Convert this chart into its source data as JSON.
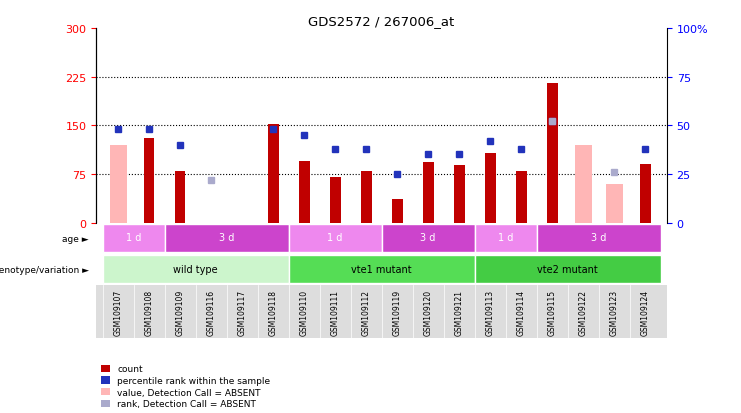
{
  "title": "GDS2572 / 267006_at",
  "samples": [
    "GSM109107",
    "GSM109108",
    "GSM109109",
    "GSM109116",
    "GSM109117",
    "GSM109118",
    "GSM109110",
    "GSM109111",
    "GSM109112",
    "GSM109119",
    "GSM109120",
    "GSM109121",
    "GSM109113",
    "GSM109114",
    "GSM109115",
    "GSM109122",
    "GSM109123",
    "GSM109124"
  ],
  "count_values": [
    null,
    130,
    80,
    null,
    null,
    152,
    95,
    70,
    80,
    37,
    93,
    88,
    108,
    80,
    215,
    null,
    null,
    90
  ],
  "count_absent": [
    120,
    null,
    null,
    null,
    null,
    null,
    null,
    null,
    null,
    null,
    null,
    null,
    null,
    null,
    null,
    120,
    60,
    null
  ],
  "rank_values": [
    48,
    48,
    40,
    null,
    null,
    48,
    45,
    38,
    38,
    25,
    35,
    35,
    42,
    38,
    52,
    null,
    null,
    38
  ],
  "rank_absent": [
    null,
    null,
    null,
    22,
    null,
    null,
    null,
    null,
    null,
    null,
    null,
    null,
    null,
    null,
    52,
    null,
    26,
    null
  ],
  "ylim_left": [
    0,
    300
  ],
  "ylim_right": [
    0,
    100
  ],
  "yticks_left": [
    0,
    75,
    150,
    225,
    300
  ],
  "yticks_right": [
    0,
    25,
    50,
    75,
    100
  ],
  "grid_lines": [
    75,
    150,
    225
  ],
  "bar_color_count": "#c00000",
  "bar_color_absent": "#ffb6b6",
  "dot_color_rank": "#2233bb",
  "dot_color_rank_absent": "#aaaacc",
  "genotype_groups": [
    {
      "label": "wild type",
      "start": 0,
      "end": 5,
      "color": "#ccf5cc"
    },
    {
      "label": "vte1 mutant",
      "start": 6,
      "end": 11,
      "color": "#55dd55"
    },
    {
      "label": "vte2 mutant",
      "start": 12,
      "end": 17,
      "color": "#44cc44"
    }
  ],
  "age_groups": [
    {
      "label": "1 d",
      "start": 0,
      "end": 1,
      "color": "#ee88ee"
    },
    {
      "label": "3 d",
      "start": 2,
      "end": 5,
      "color": "#cc44cc"
    },
    {
      "label": "1 d",
      "start": 6,
      "end": 8,
      "color": "#ee88ee"
    },
    {
      "label": "3 d",
      "start": 9,
      "end": 11,
      "color": "#cc44cc"
    },
    {
      "label": "1 d",
      "start": 12,
      "end": 13,
      "color": "#ee88ee"
    },
    {
      "label": "3 d",
      "start": 14,
      "end": 17,
      "color": "#cc44cc"
    }
  ],
  "legend_items": [
    {
      "label": "count",
      "color": "#c00000"
    },
    {
      "label": "percentile rank within the sample",
      "color": "#2233bb"
    },
    {
      "label": "value, Detection Call = ABSENT",
      "color": "#ffb6b6"
    },
    {
      "label": "rank, Detection Call = ABSENT",
      "color": "#aaaacc"
    }
  ],
  "bar_width": 0.35,
  "absent_bar_width": 0.55
}
